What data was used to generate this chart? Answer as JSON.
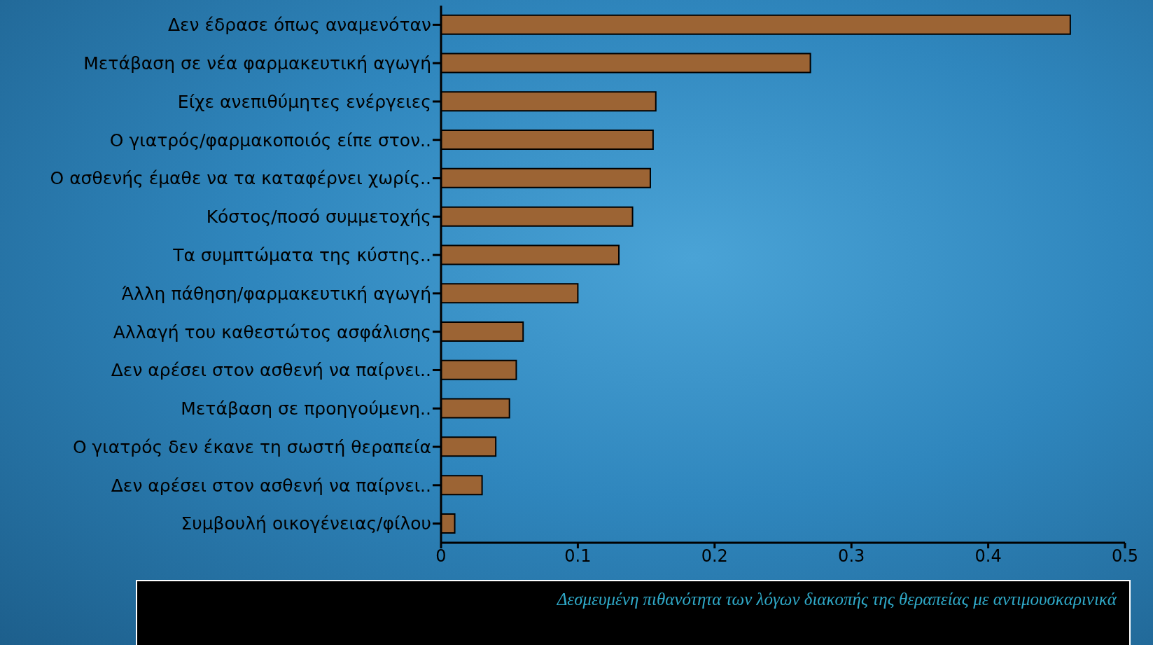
{
  "chart_data": {
    "type": "bar",
    "orientation": "horizontal",
    "categories": [
      "Δεν έδρασε όπως αναμενόταν",
      "Μετάβαση σε νέα φαρμακευτική αγωγή",
      "Είχε ανεπιθύμητες ενέργειες",
      "Ο γιατρός/φαρμακοποιός είπε στον..",
      "Ο ασθενής έμαθε να τα καταφέρνει χωρίς..",
      "Κόστος/ποσό συμμετοχής",
      "Τα συμπτώματα της κύστης..",
      "Άλλη πάθηση/φαρμακευτική αγωγή",
      "Αλλαγή του καθεστώτος ασφάλισης",
      "Δεν αρέσει στον ασθενή να παίρνει..",
      "Μετάβαση σε προηγούμενη..",
      "Ο γιατρός δεν έκανε τη σωστή θεραπεία",
      "Δεν αρέσει στον ασθενή να παίρνει..",
      "Συμβουλή οικογένειας/φίλου"
    ],
    "values": [
      0.46,
      0.27,
      0.157,
      0.155,
      0.153,
      0.14,
      0.13,
      0.1,
      0.06,
      0.055,
      0.05,
      0.04,
      0.03,
      0.01
    ],
    "color": "#9c6434",
    "xlim": [
      0,
      0.5
    ],
    "xticks": [
      0,
      0.1,
      0.2,
      0.3,
      0.4,
      0.5
    ],
    "xlabel": "Δεσμευμένη πιθανότητα των λόγων διακοπής της θεραπείας με αντιμουσκαρινικά",
    "grid": false
  }
}
